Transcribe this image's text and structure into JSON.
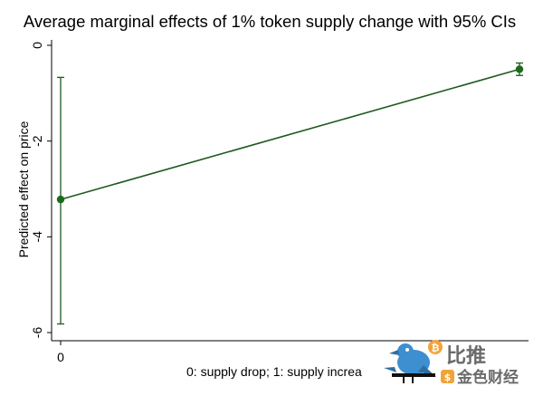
{
  "chart_data": {
    "type": "line",
    "title": "Average marginal effects of 1% token supply change with 95% CIs",
    "xlabel": "0: supply drop; 1: supply increa",
    "ylabel": "Predicted effect on price",
    "x": [
      0,
      1
    ],
    "x_tick_labels": [
      "0"
    ],
    "xlim": [
      0,
      1
    ],
    "ylim": [
      -6,
      0
    ],
    "y_ticks": [
      0,
      -2,
      -4,
      -6
    ],
    "y_tick_labels": [
      "0",
      "-2",
      "-4",
      "-6"
    ],
    "series": [
      {
        "values": [
          -3.22,
          -0.5
        ],
        "ci_lower": [
          -5.82,
          -0.63
        ],
        "ci_upper": [
          -0.67,
          -0.37
        ]
      }
    ],
    "grid": false,
    "legend": "none"
  },
  "colors": {
    "series": "#1f5a1f",
    "marker": "#1a6b1a",
    "ci": "#1f5a1f",
    "watermark_bird": "#3e8fcf",
    "watermark_coin": "#f2a33a",
    "watermark_text": "#6a6a6a"
  },
  "watermark": {
    "icon": "bird-logo-icon",
    "text_line1": "比推",
    "text_line2": "金色财经"
  }
}
